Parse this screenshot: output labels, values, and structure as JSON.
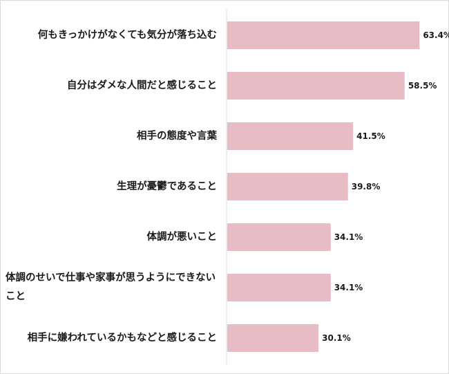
{
  "chart_data": {
    "type": "bar",
    "orientation": "horizontal",
    "categories": [
      "何もきっかけがなくても気分が落ち込む",
      "自分はダメな人間だと感じること",
      "相手の態度や言葉",
      "生理が憂鬱であること",
      "体調が悪いこと",
      "体調のせいで仕事や家事が思うようにできないこと",
      "相手に嫌われているかもなどと感じること"
    ],
    "values": [
      63.4,
      58.5,
      41.5,
      39.8,
      34.1,
      34.1,
      30.1
    ],
    "value_labels": [
      "63.4%",
      "58.5%",
      "41.5%",
      "39.8%",
      "34.1%",
      "34.1%",
      "30.1%"
    ],
    "title": "",
    "xlabel": "",
    "ylabel": "",
    "xlim": [
      0,
      100
    ],
    "grid": false,
    "legend": "none",
    "bar_color": "#e8bcc4",
    "axis_color": "#d9d9d9"
  }
}
